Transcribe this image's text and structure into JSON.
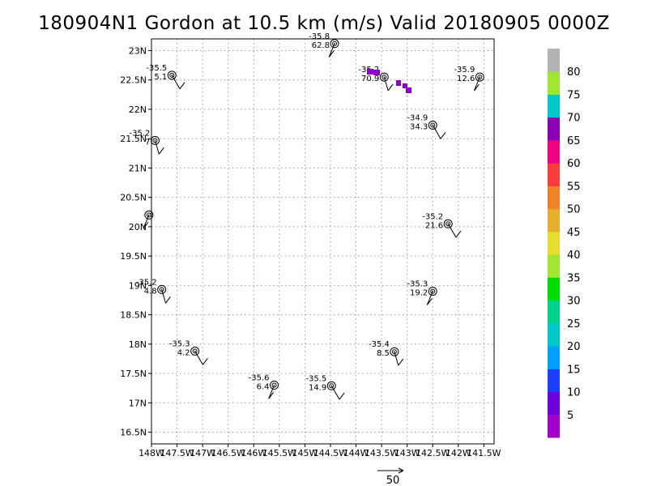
{
  "title": "180904N1 Gordon at 10.5 km (m/s) Valid 20180905 0000Z",
  "chart_data": {
    "type": "scatter",
    "title": "180904N1 Gordon at 10.5 km (m/s) Valid 20180905 0000Z",
    "xlim": [
      -148,
      -141.3
    ],
    "ylim": [
      16.3,
      23.2
    ],
    "x_ticks": [
      {
        "v": -148,
        "label": "148W"
      },
      {
        "v": -147.5,
        "label": "147.5W"
      },
      {
        "v": -147,
        "label": "147W"
      },
      {
        "v": -146.5,
        "label": "146.5W"
      },
      {
        "v": -146,
        "label": "146W"
      },
      {
        "v": -145.5,
        "label": "145.5W"
      },
      {
        "v": -145,
        "label": "145W"
      },
      {
        "v": -144.5,
        "label": "144.5W"
      },
      {
        "v": -144,
        "label": "144W"
      },
      {
        "v": -143.5,
        "label": "143.5W"
      },
      {
        "v": -143,
        "label": "143W"
      },
      {
        "v": -142.5,
        "label": "142.5W"
      },
      {
        "v": -142,
        "label": "142W"
      },
      {
        "v": -141.5,
        "label": "141.5W"
      }
    ],
    "y_ticks": [
      {
        "v": 16.5,
        "label": "16.5N"
      },
      {
        "v": 17,
        "label": "17N"
      },
      {
        "v": 17.5,
        "label": "17.5N"
      },
      {
        "v": 18,
        "label": "18N"
      },
      {
        "v": 18.5,
        "label": "18.5N"
      },
      {
        "v": 19,
        "label": "19N"
      },
      {
        "v": 19.5,
        "label": "19.5N"
      },
      {
        "v": 20,
        "label": "20N"
      },
      {
        "v": 20.5,
        "label": "20.5N"
      },
      {
        "v": 21,
        "label": "21N"
      },
      {
        "v": 21.5,
        "label": "21.5N"
      },
      {
        "v": 22,
        "label": "22N"
      },
      {
        "v": 22.5,
        "label": "22.5N"
      },
      {
        "v": 23,
        "label": "23N"
      }
    ],
    "grid": true,
    "stations": [
      {
        "lon": -144.42,
        "lat": 23.12,
        "temp": "-35.8",
        "speed": "62.8"
      },
      {
        "lon": -147.6,
        "lat": 22.58,
        "temp": "-35.5",
        "speed": "5.1"
      },
      {
        "lon": -143.45,
        "lat": 22.55,
        "temp": "-35.2",
        "speed": "70.9"
      },
      {
        "lon": -141.58,
        "lat": 22.55,
        "temp": "-35.9",
        "speed": "12.6"
      },
      {
        "lon": -142.5,
        "lat": 21.73,
        "temp": "-34.9",
        "speed": "34.3"
      },
      {
        "lon": -147.93,
        "lat": 21.47,
        "temp": "-35.2",
        "speed": "7"
      },
      {
        "lon": -148.05,
        "lat": 20.2,
        "temp": "",
        "speed": ""
      },
      {
        "lon": -142.2,
        "lat": 20.05,
        "temp": "-35.2",
        "speed": "21.6"
      },
      {
        "lon": -147.8,
        "lat": 18.93,
        "temp": "-35.2",
        "speed": "4.8"
      },
      {
        "lon": -142.5,
        "lat": 18.9,
        "temp": "-35.3",
        "speed": "19.2"
      },
      {
        "lon": -147.15,
        "lat": 17.88,
        "temp": "-35.3",
        "speed": "4.2"
      },
      {
        "lon": -143.25,
        "lat": 17.87,
        "temp": "-35.4",
        "speed": "8.5"
      },
      {
        "lon": -145.6,
        "lat": 17.3,
        "temp": "-35.6",
        "speed": "6.4"
      },
      {
        "lon": -144.48,
        "lat": 17.29,
        "temp": "-35.5",
        "speed": "14.9"
      }
    ],
    "colorbar": {
      "levels": [
        5,
        10,
        15,
        20,
        25,
        30,
        35,
        40,
        45,
        50,
        55,
        60,
        65,
        70,
        75,
        80
      ],
      "colors": [
        "#a000c8",
        "#6e00dc",
        "#1e3cff",
        "#00a0ff",
        "#00c8c8",
        "#00d28c",
        "#00dc00",
        "#a0e632",
        "#e6dc32",
        "#e6af2d",
        "#f08228",
        "#fa3c3c",
        "#f00082",
        "#8c00b4",
        "#00c8c8",
        "#a0e632",
        "#b4b4b4"
      ]
    },
    "reference_vector": {
      "label": "50"
    }
  }
}
